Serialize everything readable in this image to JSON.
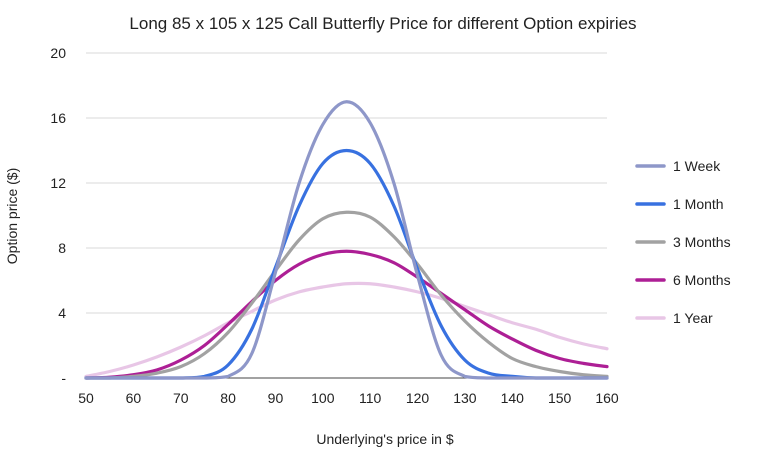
{
  "chart_data": {
    "type": "line",
    "title": "Long 85 x 105 x 125 Call Butterfly Price for different Option expiries",
    "xlabel": "Underlying's price in $",
    "ylabel": "Option price ($)",
    "xlim": [
      50,
      160
    ],
    "ylim": [
      0,
      20
    ],
    "xticks": [
      "50",
      "60",
      "70",
      "80",
      "90",
      "100",
      "110",
      "120",
      "130",
      "140",
      "150",
      "160"
    ],
    "yticks": [
      "-",
      "4",
      "8",
      "12",
      "16",
      "20"
    ],
    "grid": true,
    "legend_position": "right",
    "x": [
      50,
      55,
      60,
      65,
      70,
      75,
      80,
      85,
      90,
      95,
      100,
      105,
      110,
      115,
      120,
      125,
      130,
      135,
      140,
      145,
      150,
      155,
      160
    ],
    "series": [
      {
        "name": "1 Week",
        "color": "#8e97c9",
        "values": [
          0,
          0,
          0,
          0,
          0,
          0,
          0.1,
          1.5,
          6.5,
          12.0,
          15.6,
          17.0,
          15.7,
          12.0,
          6.3,
          1.4,
          0.1,
          0,
          0,
          0,
          0,
          0,
          0
        ]
      },
      {
        "name": "1 Month",
        "color": "#3871e0",
        "values": [
          0,
          0,
          0,
          0,
          0,
          0.1,
          0.8,
          3.0,
          6.8,
          10.6,
          13.2,
          14.0,
          13.2,
          10.6,
          6.7,
          3.2,
          1.1,
          0.3,
          0.1,
          0,
          0,
          0,
          0
        ]
      },
      {
        "name": "3 Months",
        "color": "#a2a2a2",
        "values": [
          0,
          0,
          0.1,
          0.3,
          0.7,
          1.5,
          2.8,
          4.6,
          6.6,
          8.5,
          9.8,
          10.2,
          9.9,
          8.7,
          7.0,
          5.1,
          3.5,
          2.2,
          1.2,
          0.7,
          0.4,
          0.2,
          0.1
        ]
      },
      {
        "name": "6 Months",
        "color": "#ad1f95",
        "values": [
          0,
          0.05,
          0.2,
          0.5,
          1.1,
          2.0,
          3.3,
          4.7,
          6.0,
          7.0,
          7.6,
          7.8,
          7.6,
          7.1,
          6.2,
          5.2,
          4.2,
          3.2,
          2.4,
          1.7,
          1.2,
          0.9,
          0.7
        ]
      },
      {
        "name": "1 Year",
        "color": "#e8c6e6",
        "values": [
          0.1,
          0.4,
          0.8,
          1.3,
          1.9,
          2.6,
          3.4,
          4.1,
          4.8,
          5.3,
          5.6,
          5.8,
          5.8,
          5.6,
          5.3,
          4.9,
          4.4,
          3.9,
          3.4,
          3.0,
          2.5,
          2.1,
          1.8
        ]
      }
    ]
  }
}
